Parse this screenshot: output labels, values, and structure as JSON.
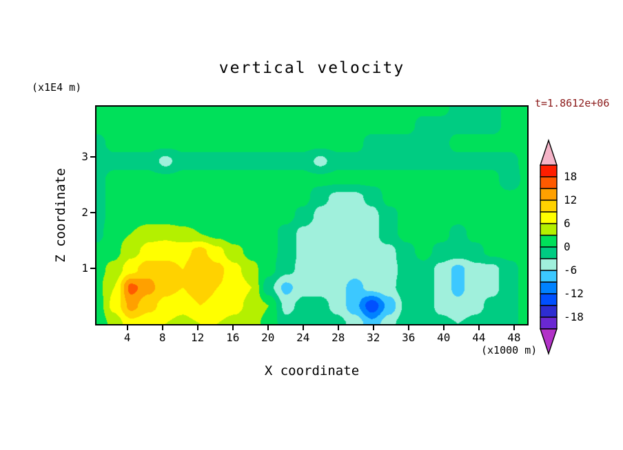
{
  "chart_data": {
    "type": "heatmap",
    "title": "vertical velocity",
    "timestamp_label": "t=1.8612e+06",
    "xlabel": "X coordinate",
    "ylabel": "Z coordinate",
    "x_unit_label": "(x1000 m)",
    "y_unit_label": "(x1E4 m)",
    "x_ticks": [
      4,
      8,
      12,
      16,
      20,
      24,
      28,
      32,
      36,
      40,
      44,
      48
    ],
    "y_ticks": [
      1,
      2,
      3
    ],
    "x_range": [
      0.5,
      49.5
    ],
    "z_range": [
      0,
      3.9
    ],
    "contour_step": 3,
    "level_min": -21,
    "level_max": 21,
    "colorbar_labels": [
      "18",
      "12",
      "6",
      "0",
      "-6",
      "-12",
      "-18"
    ],
    "palette": [
      "#b232c8",
      "#6a28d2",
      "#2d2dd2",
      "#0050ff",
      "#0082ff",
      "#3cc8ff",
      "#a0f0dc",
      "#00cc82",
      "#00e05a",
      "#b4f000",
      "#ffff00",
      "#ffd200",
      "#ffa000",
      "#ff5a00",
      "#ff1e00",
      "#f5b4c8"
    ],
    "grid": {
      "note": "estimated vertical-velocity field on coarse grid; rows ordered from z=3.9 (top) down to z=0 (bottom), columns from x=0.5 to x=49.5",
      "values": [
        [
          1,
          1,
          1,
          1,
          1,
          1,
          1,
          1,
          1,
          1,
          1,
          1,
          1,
          1,
          1,
          1,
          1,
          1,
          1,
          1,
          1,
          -1,
          -1,
          -1,
          1,
          1
        ],
        [
          1,
          1,
          1,
          1,
          1,
          1,
          1,
          1,
          1,
          1,
          1,
          1,
          1,
          1,
          1,
          1,
          1,
          1,
          1,
          -1,
          -1,
          -1,
          -1,
          -1,
          1,
          1
        ],
        [
          -1,
          1,
          1,
          1,
          1,
          1,
          1,
          1,
          1,
          1,
          1,
          1,
          1,
          1,
          1,
          1,
          -1,
          -1,
          -1,
          -1,
          -1,
          1,
          1,
          1,
          1,
          1
        ],
        [
          -2,
          -1,
          -1,
          -1,
          -4,
          -1,
          -1,
          -1,
          -1,
          -1,
          -1,
          -1,
          -1,
          -4,
          -1,
          -1,
          -1,
          -1,
          -1,
          -1,
          -1,
          -1,
          -1,
          -1,
          -1,
          1
        ],
        [
          -1,
          1,
          1,
          1,
          1,
          1,
          1,
          1,
          1,
          1,
          1,
          1,
          1,
          1,
          1,
          1,
          1,
          1,
          1,
          1,
          1,
          1,
          1,
          1,
          -2,
          1
        ],
        [
          -1,
          1,
          1,
          1,
          1,
          1,
          1,
          1,
          1,
          1,
          1,
          1,
          1,
          -2,
          -4,
          -4,
          -2,
          1,
          1,
          1,
          1,
          1,
          1,
          1,
          1,
          1
        ],
        [
          -1,
          1,
          1,
          1,
          1,
          1,
          1,
          1,
          1,
          1,
          1,
          1,
          -1,
          -4,
          -5,
          -5,
          -4,
          -1,
          1,
          1,
          1,
          1,
          1,
          1,
          1,
          1
        ],
        [
          -1,
          2,
          3,
          5,
          5,
          4,
          3,
          2,
          1,
          1,
          1,
          -1,
          -4,
          -5,
          -5,
          -4,
          -4,
          -1,
          1,
          1,
          1,
          -1,
          1,
          1,
          1,
          1
        ],
        [
          1,
          2,
          5,
          7,
          8,
          8,
          10,
          7,
          4,
          2,
          1,
          -1,
          -4,
          -5,
          -5,
          -5,
          -4,
          -4,
          -1,
          1,
          -1,
          -1,
          -1,
          1,
          1,
          1
        ],
        [
          2,
          4,
          8,
          11,
          10,
          9,
          12,
          10,
          7,
          4,
          1,
          -2,
          -4,
          -4,
          -4,
          -5,
          -4,
          -4,
          -2,
          -1,
          -4,
          -7,
          -4,
          -4,
          -1,
          1
        ],
        [
          2,
          6,
          16,
          13,
          10,
          9,
          11,
          9,
          8,
          6,
          -2,
          -7,
          -4,
          -4,
          -5,
          -7,
          -5,
          -4,
          -1,
          -1,
          -4,
          -7,
          -4,
          -4,
          -1,
          1
        ],
        [
          1,
          7,
          13,
          10,
          8,
          7,
          9,
          8,
          7,
          5,
          3,
          -4,
          -2,
          -2,
          -4,
          -8,
          -14,
          -8,
          -2,
          -1,
          -4,
          -5,
          -4,
          -2,
          -1,
          1
        ],
        [
          1,
          4,
          8,
          7,
          6,
          5,
          6,
          6,
          5,
          4,
          2,
          -2,
          -1,
          -1,
          -2,
          -4,
          -8,
          -4,
          -1,
          -1,
          -2,
          -3,
          -2,
          -1,
          -1,
          1
        ]
      ]
    }
  },
  "colors": {
    "timestamp": "#8b1a1a",
    "axis": "#000000",
    "background": "#ffffff"
  }
}
